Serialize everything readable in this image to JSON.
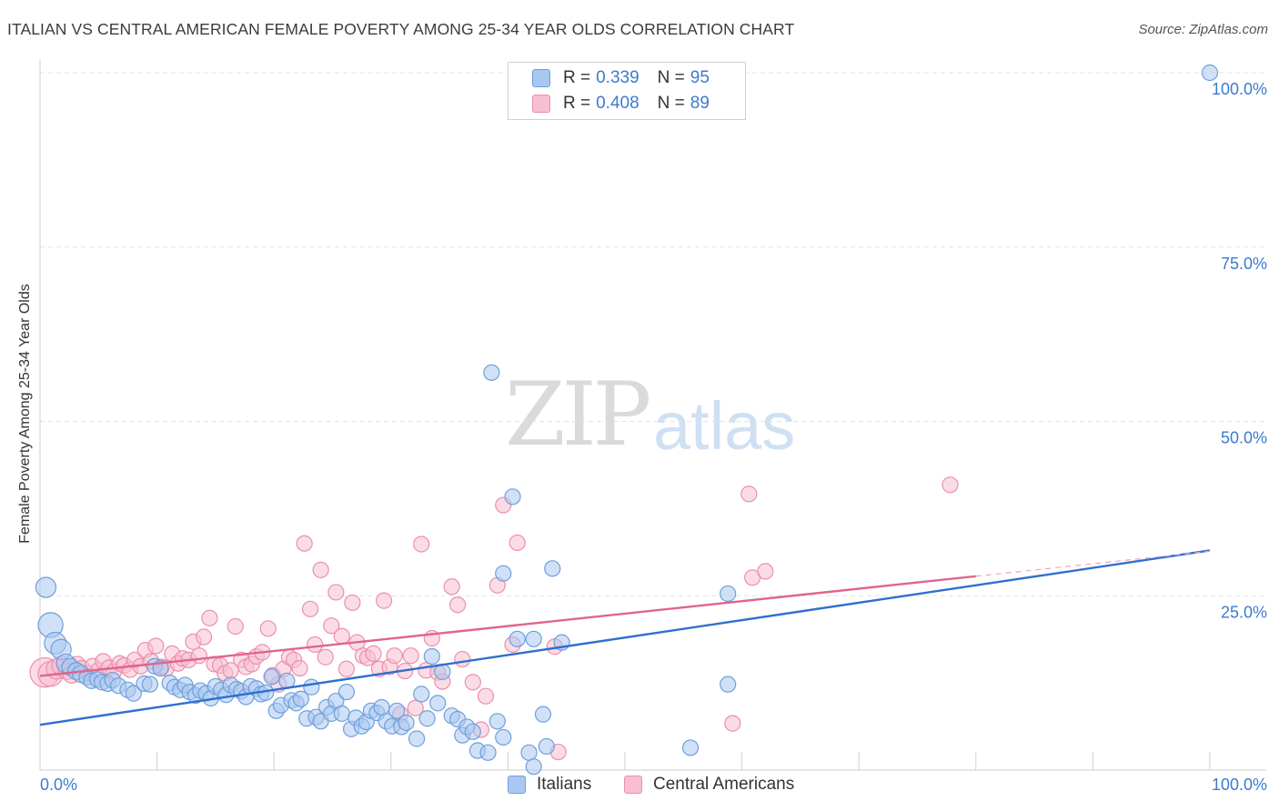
{
  "title": "ITALIAN VS CENTRAL AMERICAN FEMALE POVERTY AMONG 25-34 YEAR OLDS CORRELATION CHART",
  "source": "Source: ZipAtlas.com",
  "watermark": {
    "zip": "ZIP",
    "atlas": "atlas"
  },
  "legend": {
    "r_label": "R =",
    "n_label": "N =",
    "italians": {
      "r": "0.339",
      "n": "95"
    },
    "central": {
      "r": "0.408",
      "n": "89"
    }
  },
  "colors": {
    "italians_fill": "#a9c8f0",
    "italians_stroke": "#6f9fdc",
    "italians_line": "#2f6fd0",
    "central_fill": "#f7bfd0",
    "central_stroke": "#eb8fae",
    "central_line": "#e0648f",
    "axis_text": "#3c7bd0"
  },
  "chart_data": {
    "type": "scatter",
    "title": "ITALIAN VS CENTRAL AMERICAN FEMALE POVERTY AMONG 25-34 YEAR OLDS CORRELATION CHART",
    "xlabel": "",
    "ylabel": "Female Poverty Among 25-34 Year Olds",
    "xlim": [
      0,
      100
    ],
    "ylim": [
      0,
      100
    ],
    "x_tick_labels": [
      "0.0%",
      "100.0%"
    ],
    "y_tick_labels": [
      "25.0%",
      "50.0%",
      "75.0%",
      "100.0%"
    ],
    "y_ticks": [
      25,
      50,
      75,
      100
    ],
    "grid": true,
    "legend_position": "top-center",
    "series": [
      {
        "name": "Italians",
        "r": 0.339,
        "n": 95,
        "trend": {
          "x": [
            0,
            100
          ],
          "y": [
            6.5,
            31.5
          ]
        },
        "points": [
          [
            0.5,
            26.2,
            1.3
          ],
          [
            0.9,
            20.8,
            1.6
          ],
          [
            1.3,
            18.2,
            1.4
          ],
          [
            1.8,
            17.3,
            1.3
          ],
          [
            2.2,
            15.3,
            1.2
          ],
          [
            2.6,
            14.8,
            1.1
          ],
          [
            3.1,
            14.2,
            1.1
          ],
          [
            3.5,
            13.8,
            1.1
          ],
          [
            4.0,
            13.3,
            1.0
          ],
          [
            4.4,
            12.8,
            1.0
          ],
          [
            4.9,
            13.0,
            1.0
          ],
          [
            5.3,
            12.6,
            1.0
          ],
          [
            5.8,
            12.4,
            1.0
          ],
          [
            6.2,
            12.9,
            1.0
          ],
          [
            6.7,
            12.1,
            1.0
          ],
          [
            7.5,
            11.5,
            1.0
          ],
          [
            8.0,
            11.0,
            1.0
          ],
          [
            8.9,
            12.4,
            1.0
          ],
          [
            9.4,
            12.3,
            1.0
          ],
          [
            9.8,
            14.9,
            1.0
          ],
          [
            10.3,
            14.6,
            1.0
          ],
          [
            11.1,
            12.5,
            1.0
          ],
          [
            11.5,
            11.9,
            1.0
          ],
          [
            12.0,
            11.5,
            1.0
          ],
          [
            12.4,
            12.2,
            1.0
          ],
          [
            12.8,
            11.2,
            1.0
          ],
          [
            13.3,
            10.7,
            1.0
          ],
          [
            13.7,
            11.4,
            1.0
          ],
          [
            14.2,
            11.0,
            1.0
          ],
          [
            14.6,
            10.3,
            1.0
          ],
          [
            15.0,
            12.0,
            1.0
          ],
          [
            15.5,
            11.5,
            1.0
          ],
          [
            15.9,
            10.8,
            1.0
          ],
          [
            16.3,
            12.2,
            1.0
          ],
          [
            16.8,
            11.6,
            1.0
          ],
          [
            17.2,
            11.3,
            1.0
          ],
          [
            17.6,
            10.5,
            1.0
          ],
          [
            18.0,
            12.0,
            1.0
          ],
          [
            18.5,
            11.7,
            1.0
          ],
          [
            18.9,
            10.9,
            1.0
          ],
          [
            19.3,
            11.1,
            1.0
          ],
          [
            19.8,
            13.4,
            1.0
          ],
          [
            20.2,
            8.5,
            1.0
          ],
          [
            20.6,
            9.3,
            1.0
          ],
          [
            21.1,
            12.8,
            1.0
          ],
          [
            21.5,
            10.0,
            1.0
          ],
          [
            21.9,
            9.6,
            1.0
          ],
          [
            22.3,
            10.2,
            1.0
          ],
          [
            22.8,
            7.4,
            1.0
          ],
          [
            23.2,
            11.9,
            1.0
          ],
          [
            23.6,
            7.6,
            1.0
          ],
          [
            24.0,
            7.0,
            1.0
          ],
          [
            24.5,
            9.0,
            1.0
          ],
          [
            24.9,
            8.1,
            1.0
          ],
          [
            25.3,
            9.9,
            1.0
          ],
          [
            25.8,
            8.1,
            1.0
          ],
          [
            26.2,
            11.2,
            1.0
          ],
          [
            26.6,
            5.9,
            1.0
          ],
          [
            27.0,
            7.5,
            1.0
          ],
          [
            27.5,
            6.3,
            1.0
          ],
          [
            27.9,
            6.9,
            1.0
          ],
          [
            28.3,
            8.5,
            1.0
          ],
          [
            28.8,
            8.2,
            1.0
          ],
          [
            29.2,
            9.0,
            1.0
          ],
          [
            29.6,
            7.0,
            1.0
          ],
          [
            30.1,
            6.3,
            1.0
          ],
          [
            30.5,
            8.5,
            1.0
          ],
          [
            30.9,
            6.2,
            1.0
          ],
          [
            31.3,
            6.8,
            1.0
          ],
          [
            32.2,
            4.5,
            1.0
          ],
          [
            32.6,
            10.9,
            1.0
          ],
          [
            33.1,
            7.4,
            1.0
          ],
          [
            33.5,
            16.3,
            1.0
          ],
          [
            34.0,
            9.6,
            1.0
          ],
          [
            34.4,
            14.1,
            1.0
          ],
          [
            35.2,
            7.8,
            1.0
          ],
          [
            35.7,
            7.3,
            1.0
          ],
          [
            36.1,
            5.0,
            1.0
          ],
          [
            36.5,
            6.2,
            1.0
          ],
          [
            37.0,
            5.5,
            1.0
          ],
          [
            37.4,
            2.8,
            1.0
          ],
          [
            38.3,
            2.5,
            1.0
          ],
          [
            39.1,
            7.0,
            1.0
          ],
          [
            39.6,
            4.7,
            1.0
          ],
          [
            38.6,
            57.0,
            1.0
          ],
          [
            40.4,
            39.2,
            1.0
          ],
          [
            39.6,
            28.2,
            1.0
          ],
          [
            40.8,
            18.8,
            1.0
          ],
          [
            43.8,
            28.9,
            1.0
          ],
          [
            41.8,
            2.5,
            1.0
          ],
          [
            42.2,
            0.5,
            1.0
          ],
          [
            43.0,
            8.0,
            1.0
          ],
          [
            44.6,
            18.3,
            1.0
          ],
          [
            42.2,
            18.8,
            1.0
          ],
          [
            58.8,
            25.3,
            1.0
          ],
          [
            55.6,
            3.2,
            1.0
          ],
          [
            58.8,
            12.3,
            1.0
          ],
          [
            43.3,
            3.4,
            1.0
          ],
          [
            100.0,
            100.0,
            1.0
          ]
        ]
      },
      {
        "name": "Central Americans",
        "r": 0.408,
        "n": 89,
        "trend": {
          "x": [
            0,
            80
          ],
          "y": [
            13.5,
            27.8
          ]
        },
        "points": [
          [
            0.4,
            14.0,
            1.9
          ],
          [
            0.9,
            13.8,
            1.6
          ],
          [
            1.4,
            14.5,
            1.3
          ],
          [
            1.8,
            15.0,
            1.2
          ],
          [
            2.3,
            14.2,
            1.1
          ],
          [
            2.7,
            13.7,
            1.1
          ],
          [
            3.2,
            15.2,
            1.0
          ],
          [
            3.6,
            14.6,
            1.0
          ],
          [
            4.1,
            13.9,
            1.0
          ],
          [
            4.5,
            14.9,
            1.0
          ],
          [
            5.0,
            14.3,
            1.0
          ],
          [
            5.4,
            15.6,
            1.0
          ],
          [
            5.9,
            14.7,
            1.0
          ],
          [
            6.3,
            14.1,
            1.0
          ],
          [
            6.8,
            15.3,
            1.0
          ],
          [
            7.2,
            15.0,
            1.0
          ],
          [
            7.7,
            14.4,
            1.0
          ],
          [
            8.1,
            15.8,
            1.0
          ],
          [
            8.6,
            14.9,
            1.0
          ],
          [
            9.0,
            17.2,
            1.0
          ],
          [
            9.5,
            15.6,
            1.0
          ],
          [
            9.9,
            17.8,
            1.0
          ],
          [
            10.4,
            14.8,
            1.0
          ],
          [
            10.8,
            14.6,
            1.0
          ],
          [
            11.3,
            16.7,
            1.0
          ],
          [
            11.8,
            15.3,
            1.0
          ],
          [
            12.2,
            16.0,
            1.0
          ],
          [
            12.7,
            15.8,
            1.0
          ],
          [
            13.1,
            18.4,
            1.0
          ],
          [
            13.6,
            16.4,
            1.0
          ],
          [
            14.0,
            19.1,
            1.0
          ],
          [
            14.5,
            21.8,
            1.0
          ],
          [
            14.9,
            15.2,
            1.0
          ],
          [
            15.4,
            15.0,
            1.0
          ],
          [
            15.8,
            13.9,
            1.0
          ],
          [
            16.3,
            14.3,
            1.0
          ],
          [
            16.7,
            20.6,
            1.0
          ],
          [
            17.2,
            15.8,
            1.0
          ],
          [
            17.6,
            14.8,
            1.0
          ],
          [
            18.1,
            15.2,
            1.0
          ],
          [
            18.5,
            16.3,
            1.0
          ],
          [
            19.0,
            16.9,
            1.0
          ],
          [
            19.5,
            20.3,
            1.0
          ],
          [
            19.9,
            13.6,
            1.0
          ],
          [
            20.4,
            12.3,
            1.0
          ],
          [
            20.8,
            14.5,
            1.0
          ],
          [
            21.3,
            16.2,
            1.0
          ],
          [
            21.7,
            15.8,
            1.0
          ],
          [
            22.2,
            14.6,
            1.0
          ],
          [
            22.6,
            32.5,
            1.0
          ],
          [
            23.1,
            23.1,
            1.0
          ],
          [
            23.5,
            18.0,
            1.0
          ],
          [
            24.0,
            28.7,
            1.0
          ],
          [
            24.4,
            16.2,
            1.0
          ],
          [
            24.9,
            20.7,
            1.0
          ],
          [
            25.3,
            25.5,
            1.0
          ],
          [
            25.8,
            19.2,
            1.0
          ],
          [
            26.2,
            14.5,
            1.0
          ],
          [
            26.7,
            24.0,
            1.0
          ],
          [
            27.1,
            18.3,
            1.0
          ],
          [
            27.6,
            16.4,
            1.0
          ],
          [
            28.0,
            16.1,
            1.0
          ],
          [
            28.5,
            16.7,
            1.0
          ],
          [
            29.0,
            14.5,
            1.0
          ],
          [
            29.4,
            24.3,
            1.0
          ],
          [
            29.9,
            14.8,
            1.0
          ],
          [
            30.3,
            16.4,
            1.0
          ],
          [
            30.8,
            8.0,
            1.0
          ],
          [
            31.2,
            14.2,
            1.0
          ],
          [
            31.7,
            16.4,
            1.0
          ],
          [
            32.1,
            8.9,
            1.0
          ],
          [
            32.6,
            32.4,
            1.0
          ],
          [
            33.0,
            14.3,
            1.0
          ],
          [
            33.5,
            18.9,
            1.0
          ],
          [
            34.0,
            14.0,
            1.0
          ],
          [
            34.4,
            12.7,
            1.0
          ],
          [
            35.2,
            26.3,
            1.0
          ],
          [
            35.7,
            23.7,
            1.0
          ],
          [
            36.1,
            15.9,
            1.0
          ],
          [
            37.0,
            12.6,
            1.0
          ],
          [
            38.1,
            10.6,
            1.0
          ],
          [
            39.1,
            26.5,
            1.0
          ],
          [
            39.6,
            38.0,
            1.0
          ],
          [
            40.4,
            18.0,
            1.0
          ],
          [
            40.8,
            32.6,
            1.0
          ],
          [
            44.3,
            2.6,
            1.0
          ],
          [
            59.2,
            6.7,
            1.0
          ],
          [
            60.9,
            27.6,
            1.0
          ],
          [
            62.0,
            28.5,
            1.0
          ],
          [
            77.8,
            40.9,
            1.0
          ],
          [
            60.6,
            39.6,
            1.0
          ],
          [
            37.7,
            5.8,
            1.0
          ],
          [
            44.0,
            17.7,
            1.0
          ]
        ]
      }
    ]
  },
  "bottom_legend": {
    "italians": "Italians",
    "central": "Central Americans"
  }
}
